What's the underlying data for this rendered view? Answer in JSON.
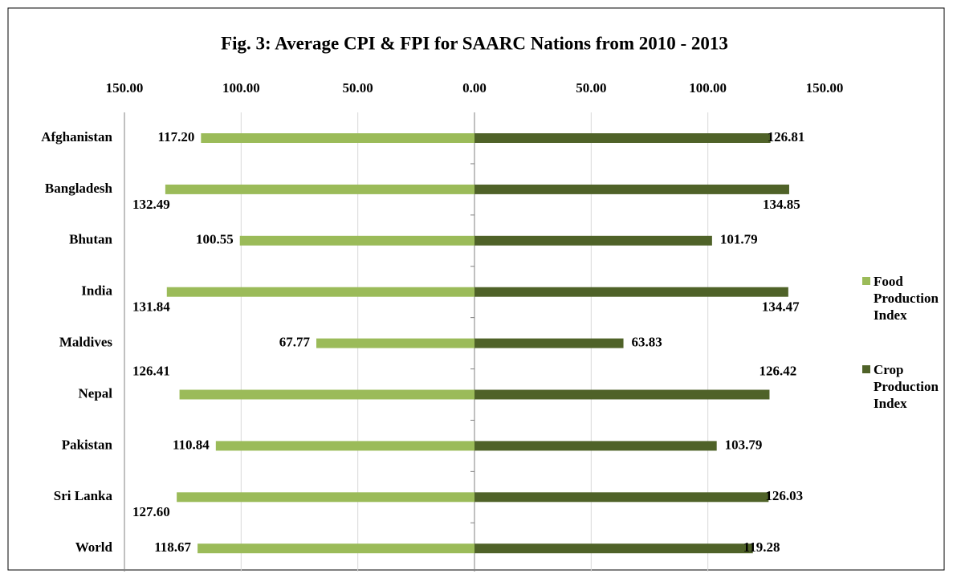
{
  "chart_data": {
    "type": "butterfly-bar",
    "title": "Fig. 3: Average CPI & FPI for SAARC Nations from 2010 - 2013",
    "categories": [
      "Afghanistan",
      "Bangladesh",
      "Bhutan",
      "India",
      "Maldives",
      "Nepal",
      "Pakistan",
      "Sri Lanka",
      "World"
    ],
    "series": [
      {
        "name": "Food Production Index",
        "color": "#9bbb59",
        "side": "left",
        "values": [
          117.2,
          132.49,
          100.55,
          131.84,
          67.77,
          126.41,
          110.84,
          127.6,
          118.67
        ],
        "value_labels": [
          "117.20",
          "132.49",
          "100.55",
          "131.84",
          "67.77",
          "126.41",
          "110.84",
          "127.60",
          "118.67"
        ]
      },
      {
        "name": "Crop Production Index",
        "color": "#4f6228",
        "side": "right",
        "values": [
          126.81,
          134.85,
          101.79,
          134.47,
          63.83,
          126.42,
          103.79,
          126.03,
          119.28
        ],
        "value_labels": [
          "126.81",
          "134.85",
          "101.79",
          "134.47",
          "63.83",
          "126.42",
          "103.79",
          "126.03",
          "119.28"
        ]
      }
    ],
    "xlim_left": [
      150,
      0
    ],
    "xticks_left": [
      {
        "value": 150,
        "label": "150.00"
      },
      {
        "value": 100,
        "label": "100.00"
      },
      {
        "value": 50,
        "label": "50.00"
      },
      {
        "value": 0,
        "label": "0.00"
      }
    ],
    "xlim_right": [
      0,
      150
    ],
    "xticks_right": [
      {
        "value": 50,
        "label": "50.00"
      },
      {
        "value": 100,
        "label": "100.00"
      },
      {
        "value": 150,
        "label": "150.00"
      }
    ],
    "grid": true,
    "legend": "right"
  }
}
